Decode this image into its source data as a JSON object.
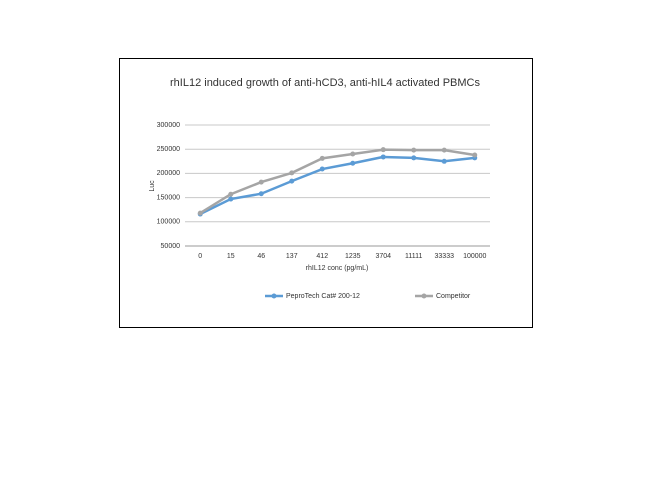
{
  "chart_data": {
    "type": "line",
    "title": "rhIL12 induced growth of anti-hCD3, anti-hIL4 activated PBMCs",
    "x_label": "rhIL12 conc (pg/mL)",
    "y_label": "Luc",
    "categories": [
      "0",
      "15",
      "46",
      "137",
      "412",
      "1235",
      "3704",
      "11111",
      "33333",
      "100000"
    ],
    "series": [
      {
        "name": "PeproTech Cat# 200-12",
        "color": "#5b9bd5",
        "values": [
          116000,
          147000,
          158000,
          184000,
          209000,
          221000,
          234000,
          232000,
          225000,
          232000
        ]
      },
      {
        "name": "Competitor",
        "color": "#a5a5a5",
        "values": [
          118000,
          157000,
          182000,
          201000,
          231000,
          240000,
          249000,
          248000,
          248000,
          238000
        ]
      }
    ],
    "ylim": [
      50000,
      300000
    ],
    "yticks": [
      50000,
      100000,
      150000,
      200000,
      250000,
      300000
    ],
    "grid": true,
    "legend": "bottom"
  }
}
